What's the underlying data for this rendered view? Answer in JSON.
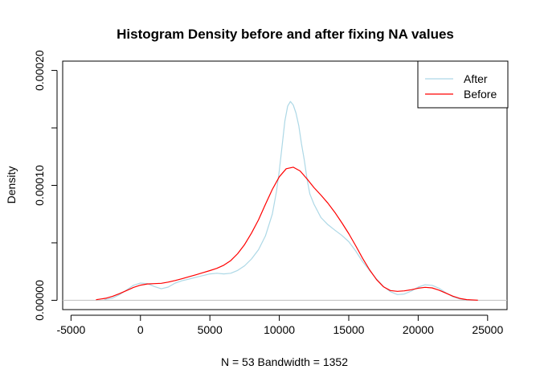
{
  "chart_data": {
    "type": "line",
    "title": "Histogram Density before and after fixing NA values",
    "xlabel": "N = 53   Bandwidth = 1352",
    "ylabel": "Density",
    "xlim": [
      -5600,
      26400
    ],
    "ylim": [
      -8.1e-06,
      0.0002081
    ],
    "x_ticks": [
      -5000,
      0,
      5000,
      10000,
      15000,
      20000,
      25000
    ],
    "x_tick_labels": [
      "-5000",
      "0",
      "5000",
      "10000",
      "15000",
      "20000",
      "25000"
    ],
    "y_ticks": [
      0,
      5e-05,
      0.0001,
      0.00015,
      0.0002
    ],
    "y_tick_labels": [
      "0.00000",
      "0.00010",
      "0.00020"
    ],
    "y_tick_labeled": [
      0,
      0.0001,
      0.0002
    ],
    "baseline": 0,
    "baseline_color": "#bebebe",
    "grid": false,
    "legend_position": "top-right",
    "series": [
      {
        "name": "After",
        "color": "#add8e6",
        "x": [
          -2600,
          -2000,
          -1500,
          -1000,
          -500,
          0,
          500,
          1000,
          1500,
          2000,
          2500,
          3000,
          3500,
          4000,
          4500,
          5000,
          5500,
          6000,
          6500,
          7000,
          7500,
          8000,
          8500,
          9000,
          9500,
          9800,
          10000,
          10200,
          10400,
          10600,
          10800,
          11000,
          11200,
          11400,
          11600,
          11800,
          12000,
          12200,
          12500,
          13000,
          13500,
          14000,
          14500,
          15000,
          15500,
          16000,
          16500,
          17000,
          17500,
          18000,
          18500,
          19000,
          19500,
          20000,
          20500,
          21000,
          21500,
          22000,
          22500,
          23000,
          23500,
          24000
        ],
        "values": [
          5e-07,
          2e-06,
          5e-06,
          9e-06,
          1.3e-05,
          1.5e-05,
          1.45e-05,
          1.2e-05,
          1e-05,
          1.15e-05,
          1.5e-05,
          1.7e-05,
          1.85e-05,
          2e-05,
          2.15e-05,
          2.3e-05,
          2.35e-05,
          2.3e-05,
          2.35e-05,
          2.6e-05,
          3e-05,
          3.6e-05,
          4.4e-05,
          5.6e-05,
          7.5e-05,
          9.49e-05,
          0.000113,
          0.000134,
          0.000156,
          0.000169,
          0.000173,
          0.00017,
          0.000163,
          0.000152,
          0.000136,
          0.000122,
          0.000105,
          9.25e-05,
          8.35e-05,
          7.2e-05,
          6.58e-05,
          6.1e-05,
          5.65e-05,
          5.1e-05,
          4.3e-05,
          3.35e-05,
          2.6e-05,
          1.85e-05,
          1.2e-05,
          7.5e-06,
          5e-06,
          5.5e-06,
          8e-06,
          1.15e-05,
          1.35e-05,
          1.3e-05,
          1.05e-05,
          6.5e-06,
          3e-06,
          1.2e-06,
          4e-07,
          1e-07
        ]
      },
      {
        "name": "Before",
        "color": "#ff0000",
        "x": [
          -3200,
          -2500,
          -2000,
          -1500,
          -1000,
          -500,
          0,
          500,
          1000,
          1500,
          2000,
          2500,
          3000,
          3500,
          4000,
          4500,
          5000,
          5500,
          6000,
          6500,
          7000,
          7500,
          8000,
          8500,
          9000,
          9500,
          10000,
          10500,
          11000,
          11500,
          12000,
          12500,
          13000,
          13500,
          14000,
          14500,
          15000,
          15500,
          16000,
          16500,
          17000,
          17500,
          18000,
          18500,
          19000,
          19500,
          20000,
          20500,
          21000,
          21500,
          22000,
          22500,
          23000,
          23500,
          24300
        ],
        "values": [
          5e-07,
          1.8e-06,
          3.5e-06,
          5.8e-06,
          8.5e-06,
          1.12e-05,
          1.32e-05,
          1.42e-05,
          1.45e-05,
          1.48e-05,
          1.58e-05,
          1.72e-05,
          1.88e-05,
          2.05e-05,
          2.22e-05,
          2.4e-05,
          2.58e-05,
          2.78e-05,
          3.05e-05,
          3.45e-05,
          4.05e-05,
          4.85e-05,
          5.85e-05,
          7e-05,
          8.35e-05,
          9.65e-05,
          0.0001075,
          0.0001145,
          0.0001158,
          0.0001125,
          0.0001055,
          9.8e-05,
          9.15e-05,
          8.45e-05,
          7.65e-05,
          6.75e-05,
          5.8e-05,
          4.75e-05,
          3.65e-05,
          2.65e-05,
          1.8e-05,
          1.18e-05,
          8.5e-06,
          7.8e-06,
          8.2e-06,
          9.2e-06,
          1.05e-05,
          1.13e-05,
          1.08e-05,
          8.8e-06,
          6.2e-06,
          3.6e-06,
          1.6e-06,
          6e-07,
          1e-07
        ]
      }
    ]
  }
}
